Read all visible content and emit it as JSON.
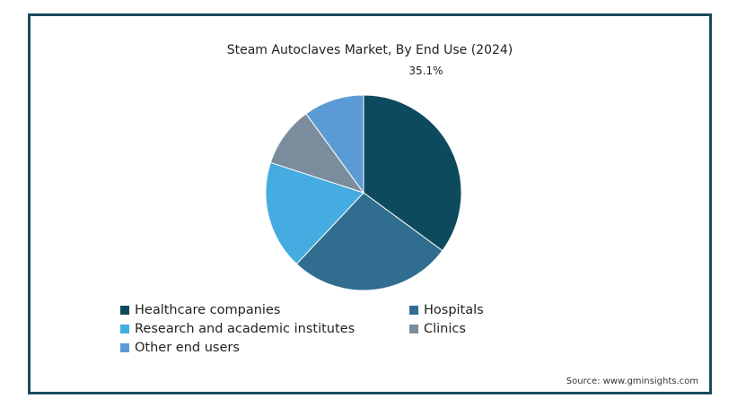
{
  "source": "Source: www.gminsights.com",
  "chart_data": {
    "type": "pie",
    "title": "Steam Autoclaves Market, By End Use (2024)",
    "slices": [
      {
        "label": "Healthcare companies",
        "value": 35.1,
        "color": "#0e4a5e",
        "data_label": "35.1%"
      },
      {
        "label": "Hospitals",
        "value": 26.9,
        "color": "#306d8f",
        "data_label": ""
      },
      {
        "label": "Research and academic institutes",
        "value": 18.0,
        "color": "#44ace0",
        "data_label": ""
      },
      {
        "label": "Clinics",
        "value": 10.0,
        "color": "#7b8c9d",
        "data_label": ""
      },
      {
        "label": "Other end users",
        "value": 10.0,
        "color": "#5b9bd5",
        "data_label": ""
      }
    ],
    "start_angle_deg": 0,
    "direction": "clockwise",
    "legend_position": "bottom"
  }
}
